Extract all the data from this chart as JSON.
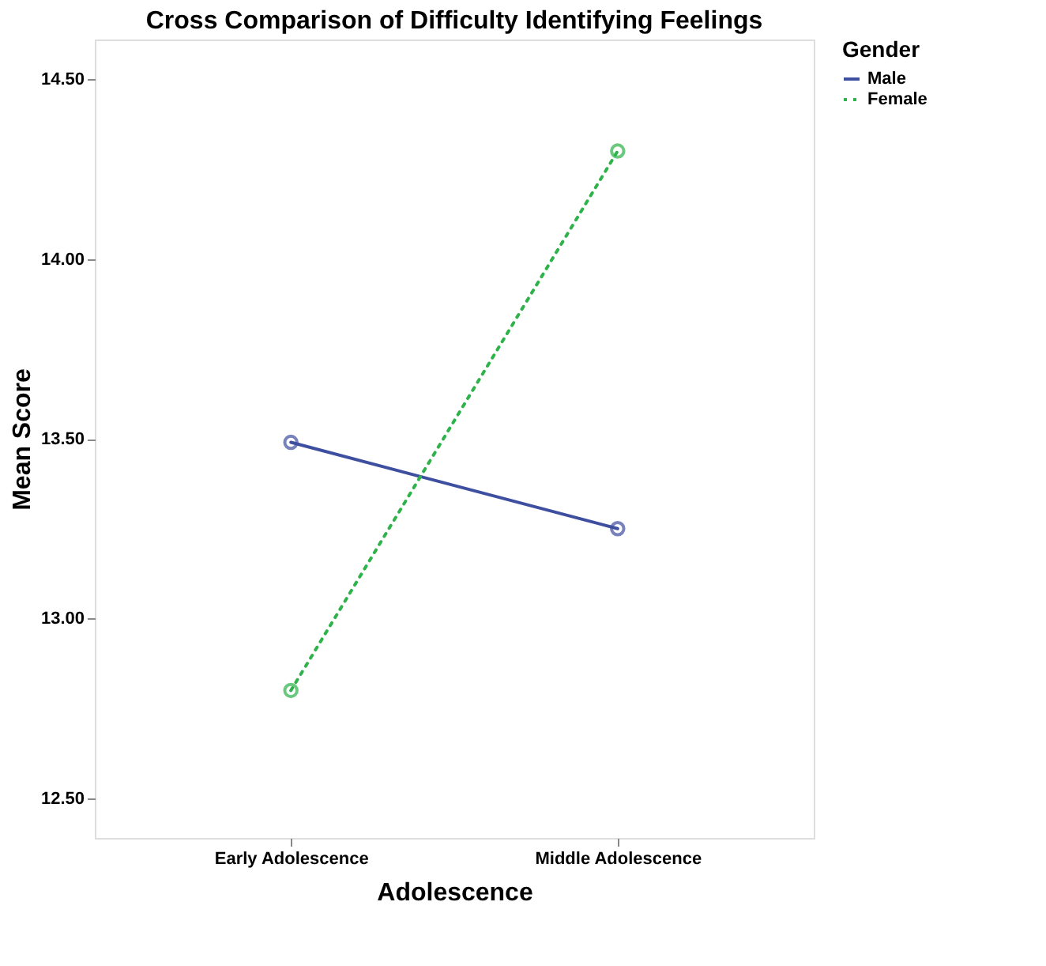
{
  "chart_data": {
    "type": "line",
    "title": "Cross Comparison of Difficulty Identifying Feelings",
    "xlabel": "Adolescence",
    "ylabel": "Mean Score",
    "legend_title": "Gender",
    "categories": [
      "Early Adolescence",
      "Middle Adolescence"
    ],
    "series": [
      {
        "name": "Male",
        "color": "#3f4fa0",
        "line_style": "solid",
        "values": [
          13.49,
          13.25
        ]
      },
      {
        "name": "Female",
        "color": "#2db34a",
        "line_style": "dotted",
        "values": [
          12.8,
          14.3
        ]
      }
    ],
    "marker": "circle",
    "legend": "top right",
    "grid": false,
    "ylim": [
      12.39,
      14.61
    ],
    "yticks": [
      {
        "value": 12.5,
        "label": "12.50"
      },
      {
        "value": 13.0,
        "label": "13.00"
      },
      {
        "value": 13.5,
        "label": "13.50"
      },
      {
        "value": 14.0,
        "label": "14.00"
      },
      {
        "value": 14.5,
        "label": "14.50"
      }
    ]
  }
}
